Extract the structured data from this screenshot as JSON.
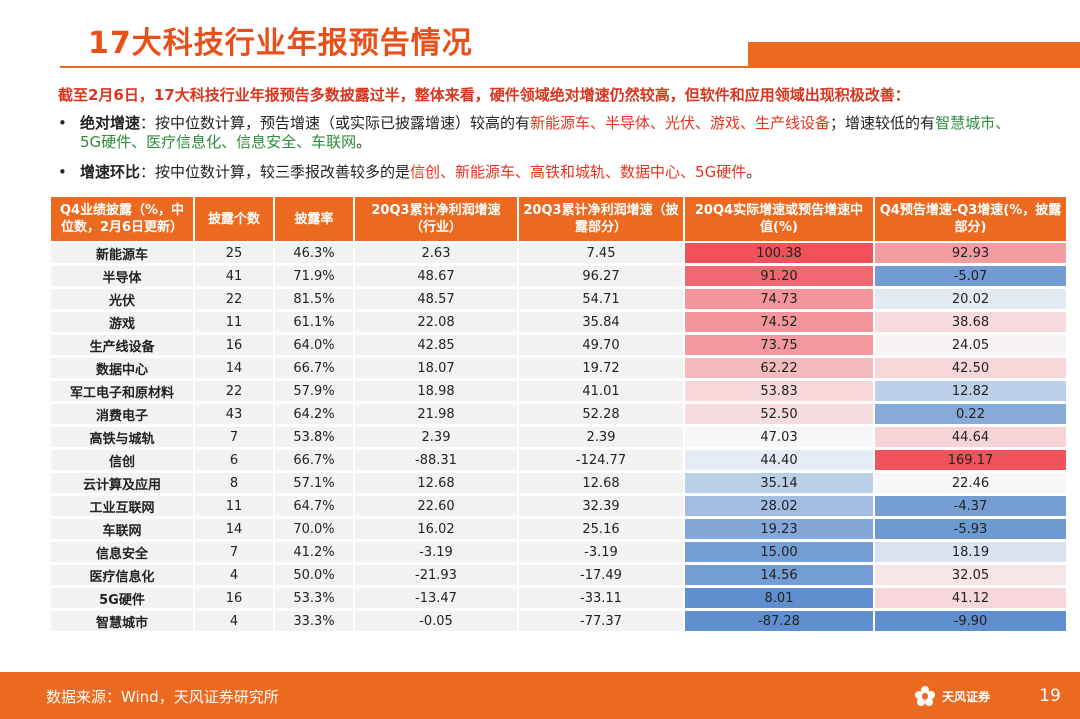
{
  "title": "17大科技行业年报预告情况",
  "intro": "截至2月6日，17大科技行业年报预告多数披露过半，整体来看，硬件领域绝对增速仍然较高，但软件和应用领域出现积极改善：",
  "bullet1": {
    "label": "绝对增速",
    "text_a": "：按中位数计算，预告增速（或实际已披露增速）较高的有",
    "highlight_red": "新能源车、半导体、光伏、游戏、生产线设备",
    "text_b": "；增速较低的有",
    "highlight_green": "智慧城市、5G硬件、医疗信息化、信息安全、车联网",
    "text_c": "。"
  },
  "bullet2": {
    "label": "增速环比",
    "text_a": "：按中位数计算，较三季报改善较多的是",
    "highlight_red": "信创、新能源车、高铁和城轨、数据中心、5G硬件",
    "text_c": "。"
  },
  "table": {
    "headers": [
      "Q4业绩披露（%，中位数，2月6日更新）",
      "披露个数",
      "披露率",
      "20Q3累计净利润增速（行业）",
      "20Q3累计净利润增速（披露部分）",
      "20Q4实际增速或预告增速中值(%)",
      "Q4预告增速-Q3增速(%，披露部分)"
    ],
    "rows": [
      [
        "新能源车",
        "25",
        "46.3%",
        "2.63",
        "7.45",
        "100.38",
        "92.93"
      ],
      [
        "半导体",
        "41",
        "71.9%",
        "48.67",
        "96.27",
        "91.20",
        "-5.07"
      ],
      [
        "光伏",
        "22",
        "81.5%",
        "48.57",
        "54.71",
        "74.73",
        "20.02"
      ],
      [
        "游戏",
        "11",
        "61.1%",
        "22.08",
        "35.84",
        "74.52",
        "38.68"
      ],
      [
        "生产线设备",
        "16",
        "64.0%",
        "42.85",
        "49.70",
        "73.75",
        "24.05"
      ],
      [
        "数据中心",
        "14",
        "66.7%",
        "18.07",
        "19.72",
        "62.22",
        "42.50"
      ],
      [
        "军工电子和原材料",
        "22",
        "57.9%",
        "18.98",
        "41.01",
        "53.83",
        "12.82"
      ],
      [
        "消费电子",
        "43",
        "64.2%",
        "21.98",
        "52.28",
        "52.50",
        "0.22"
      ],
      [
        "高铁与城轨",
        "7",
        "53.8%",
        "2.39",
        "2.39",
        "47.03",
        "44.64"
      ],
      [
        "信创",
        "6",
        "66.7%",
        "-88.31",
        "-124.77",
        "44.40",
        "169.17"
      ],
      [
        "云计算及应用",
        "8",
        "57.1%",
        "12.68",
        "12.68",
        "35.14",
        "22.46"
      ],
      [
        "工业互联网",
        "11",
        "64.7%",
        "22.60",
        "32.39",
        "28.02",
        "-4.37"
      ],
      [
        "车联网",
        "14",
        "70.0%",
        "16.02",
        "25.16",
        "19.23",
        "-5.93"
      ],
      [
        "信息安全",
        "7",
        "41.2%",
        "-3.19",
        "-3.19",
        "15.00",
        "18.19"
      ],
      [
        "医疗信息化",
        "4",
        "50.0%",
        "-21.93",
        "-17.49",
        "14.56",
        "32.05"
      ],
      [
        "5G硬件",
        "16",
        "53.3%",
        "-13.47",
        "-33.11",
        "8.01",
        "41.12"
      ],
      [
        "智慧城市",
        "4",
        "33.3%",
        "-0.05",
        "-77.37",
        "-87.28",
        "-9.90"
      ]
    ]
  },
  "footer": {
    "source": "数据来源：Wind，天风证券研究所",
    "brand": "天风证券",
    "page": "19"
  },
  "colors": {
    "accent": "#ec6a1f",
    "heat_high": "#f0525a",
    "heat_mid": "#f7f7f9",
    "heat_low": "#5f8fce"
  }
}
